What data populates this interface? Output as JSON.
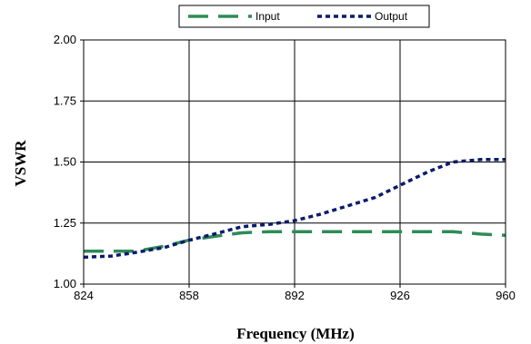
{
  "chart_data": {
    "type": "line",
    "title": "",
    "xlabel": "Frequency (MHz)",
    "ylabel": "VSWR",
    "xlim": [
      824,
      960
    ],
    "ylim": [
      1.0,
      2.0
    ],
    "x_ticks": [
      824,
      858,
      892,
      926,
      960
    ],
    "y_ticks": [
      1.0,
      1.25,
      1.5,
      1.75,
      2.0
    ],
    "x_tick_labels": [
      "824",
      "858",
      "892",
      "926",
      "960"
    ],
    "y_tick_labels": [
      "1.00",
      "1.25",
      "1.50",
      "1.75",
      "2.00"
    ],
    "grid": true,
    "legend_position": "top",
    "series": [
      {
        "name": "Input",
        "color": "#2e8b57",
        "dash": "long-dash",
        "x": [
          824,
          841,
          850,
          858,
          866,
          875,
          884,
          892,
          900,
          909,
          918,
          926,
          935,
          943,
          952,
          960
        ],
        "y": [
          1.135,
          1.135,
          1.155,
          1.18,
          1.195,
          1.21,
          1.215,
          1.215,
          1.215,
          1.215,
          1.215,
          1.215,
          1.215,
          1.215,
          1.205,
          1.2
        ]
      },
      {
        "name": "Output",
        "color": "#0a1a6e",
        "dash": "dot",
        "x": [
          824,
          833,
          841,
          850,
          858,
          866,
          875,
          884,
          892,
          900,
          909,
          918,
          926,
          935,
          943,
          952,
          960
        ],
        "y": [
          1.11,
          1.115,
          1.13,
          1.15,
          1.18,
          1.205,
          1.235,
          1.245,
          1.26,
          1.285,
          1.32,
          1.355,
          1.405,
          1.46,
          1.5,
          1.51,
          1.51
        ]
      }
    ]
  }
}
